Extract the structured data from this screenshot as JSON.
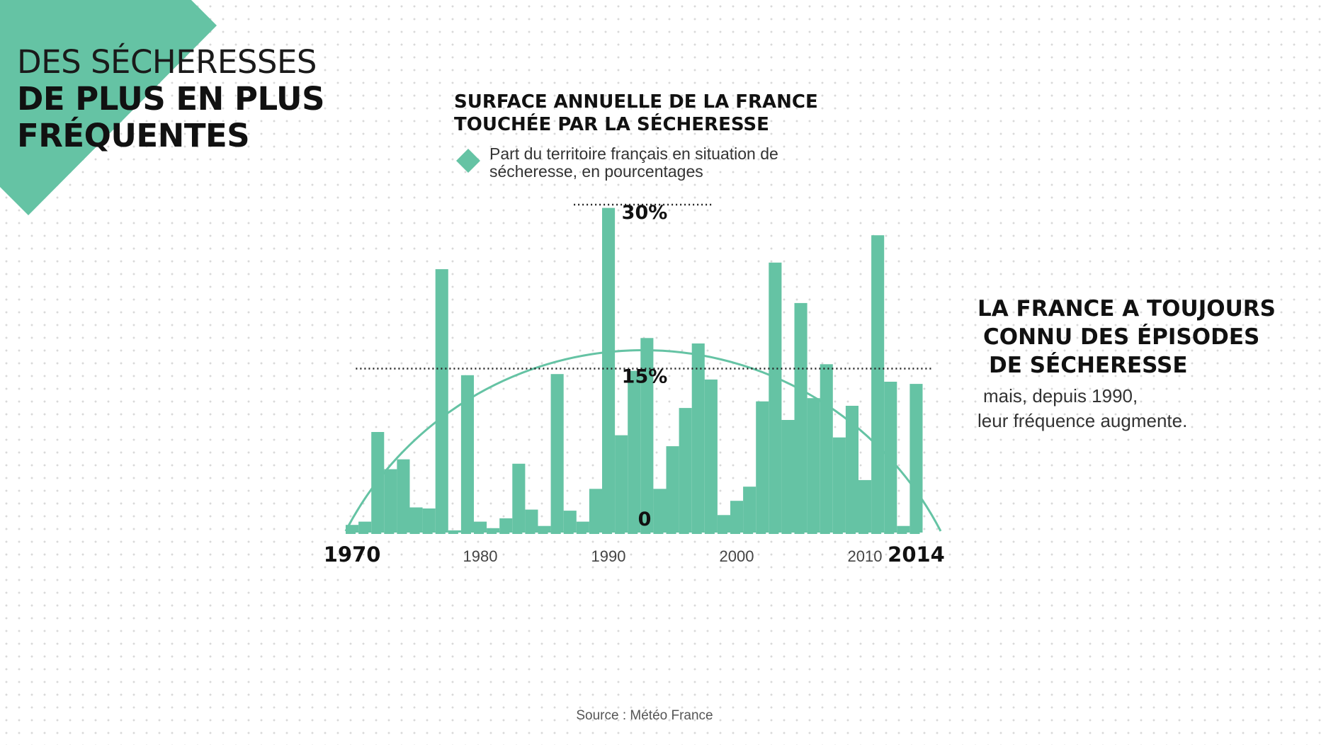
{
  "headline": {
    "line1": "DES SÉCHERESSES",
    "line2": "DE PLUS EN PLUS",
    "line3": "FRÉQUENTES"
  },
  "source": "Source : Météo France",
  "colors": {
    "accent": "#65c3a4",
    "text": "#111111"
  },
  "chart_data": {
    "type": "bar",
    "title": "SURFACE ANNUELLE DE LA FRANCE TOUCHÉE PAR LA SÉCHERESSE",
    "title_lines": [
      "SURFACE ANNUELLE DE LA FRANCE",
      "TOUCHÉE PAR LA SÉCHERESSE"
    ],
    "legend": "Part du territoire français en situation de sécheresse, en pourcentages",
    "ylim": [
      0,
      30
    ],
    "y_reference_lines": [
      {
        "value": 30,
        "label": "30%"
      },
      {
        "value": 15,
        "label": "15%"
      },
      {
        "value": 0,
        "label": "0"
      }
    ],
    "x_tick_labels": [
      {
        "year": 1970,
        "label": "1970",
        "emphasis": true
      },
      {
        "year": 1980,
        "label": "1980",
        "emphasis": false
      },
      {
        "year": 1990,
        "label": "1990",
        "emphasis": false
      },
      {
        "year": 2000,
        "label": "2000",
        "emphasis": false
      },
      {
        "year": 2010,
        "label": "2010",
        "emphasis": false
      },
      {
        "year": 2014,
        "label": "2014",
        "emphasis": true
      }
    ],
    "x": [
      1970,
      1971,
      1972,
      1973,
      1974,
      1975,
      1976,
      1977,
      1978,
      1979,
      1980,
      1981,
      1982,
      1983,
      1984,
      1985,
      1986,
      1987,
      1988,
      1989,
      1990,
      1991,
      1992,
      1993,
      1994,
      1995,
      1996,
      1997,
      1998,
      1999,
      2000,
      2001,
      2002,
      2003,
      2004,
      2005,
      2006,
      2007,
      2008,
      2009,
      2010,
      2011,
      2012,
      2013,
      2014
    ],
    "values": [
      0.7,
      1.0,
      9.2,
      5.8,
      6.7,
      2.3,
      2.2,
      24.1,
      0.2,
      14.4,
      1.0,
      0.4,
      1.3,
      6.3,
      2.1,
      0.6,
      14.5,
      2.0,
      1.0,
      4.0,
      29.7,
      8.9,
      14.8,
      17.8,
      4.0,
      7.9,
      11.4,
      17.3,
      14.0,
      1.6,
      2.9,
      4.2,
      12.0,
      24.7,
      10.3,
      21.0,
      12.3,
      15.4,
      8.7,
      11.6,
      4.8,
      27.2,
      13.8,
      0.6,
      13.6
    ],
    "grid": false
  },
  "annotation": {
    "heading_lines": [
      "LA FRANCE A TOUJOURS",
      "CONNU DES ÉPISODES",
      "DE SÉCHERESSE"
    ],
    "sub_lines": [
      "mais, depuis 1990,",
      "leur fréquence augmente."
    ]
  }
}
